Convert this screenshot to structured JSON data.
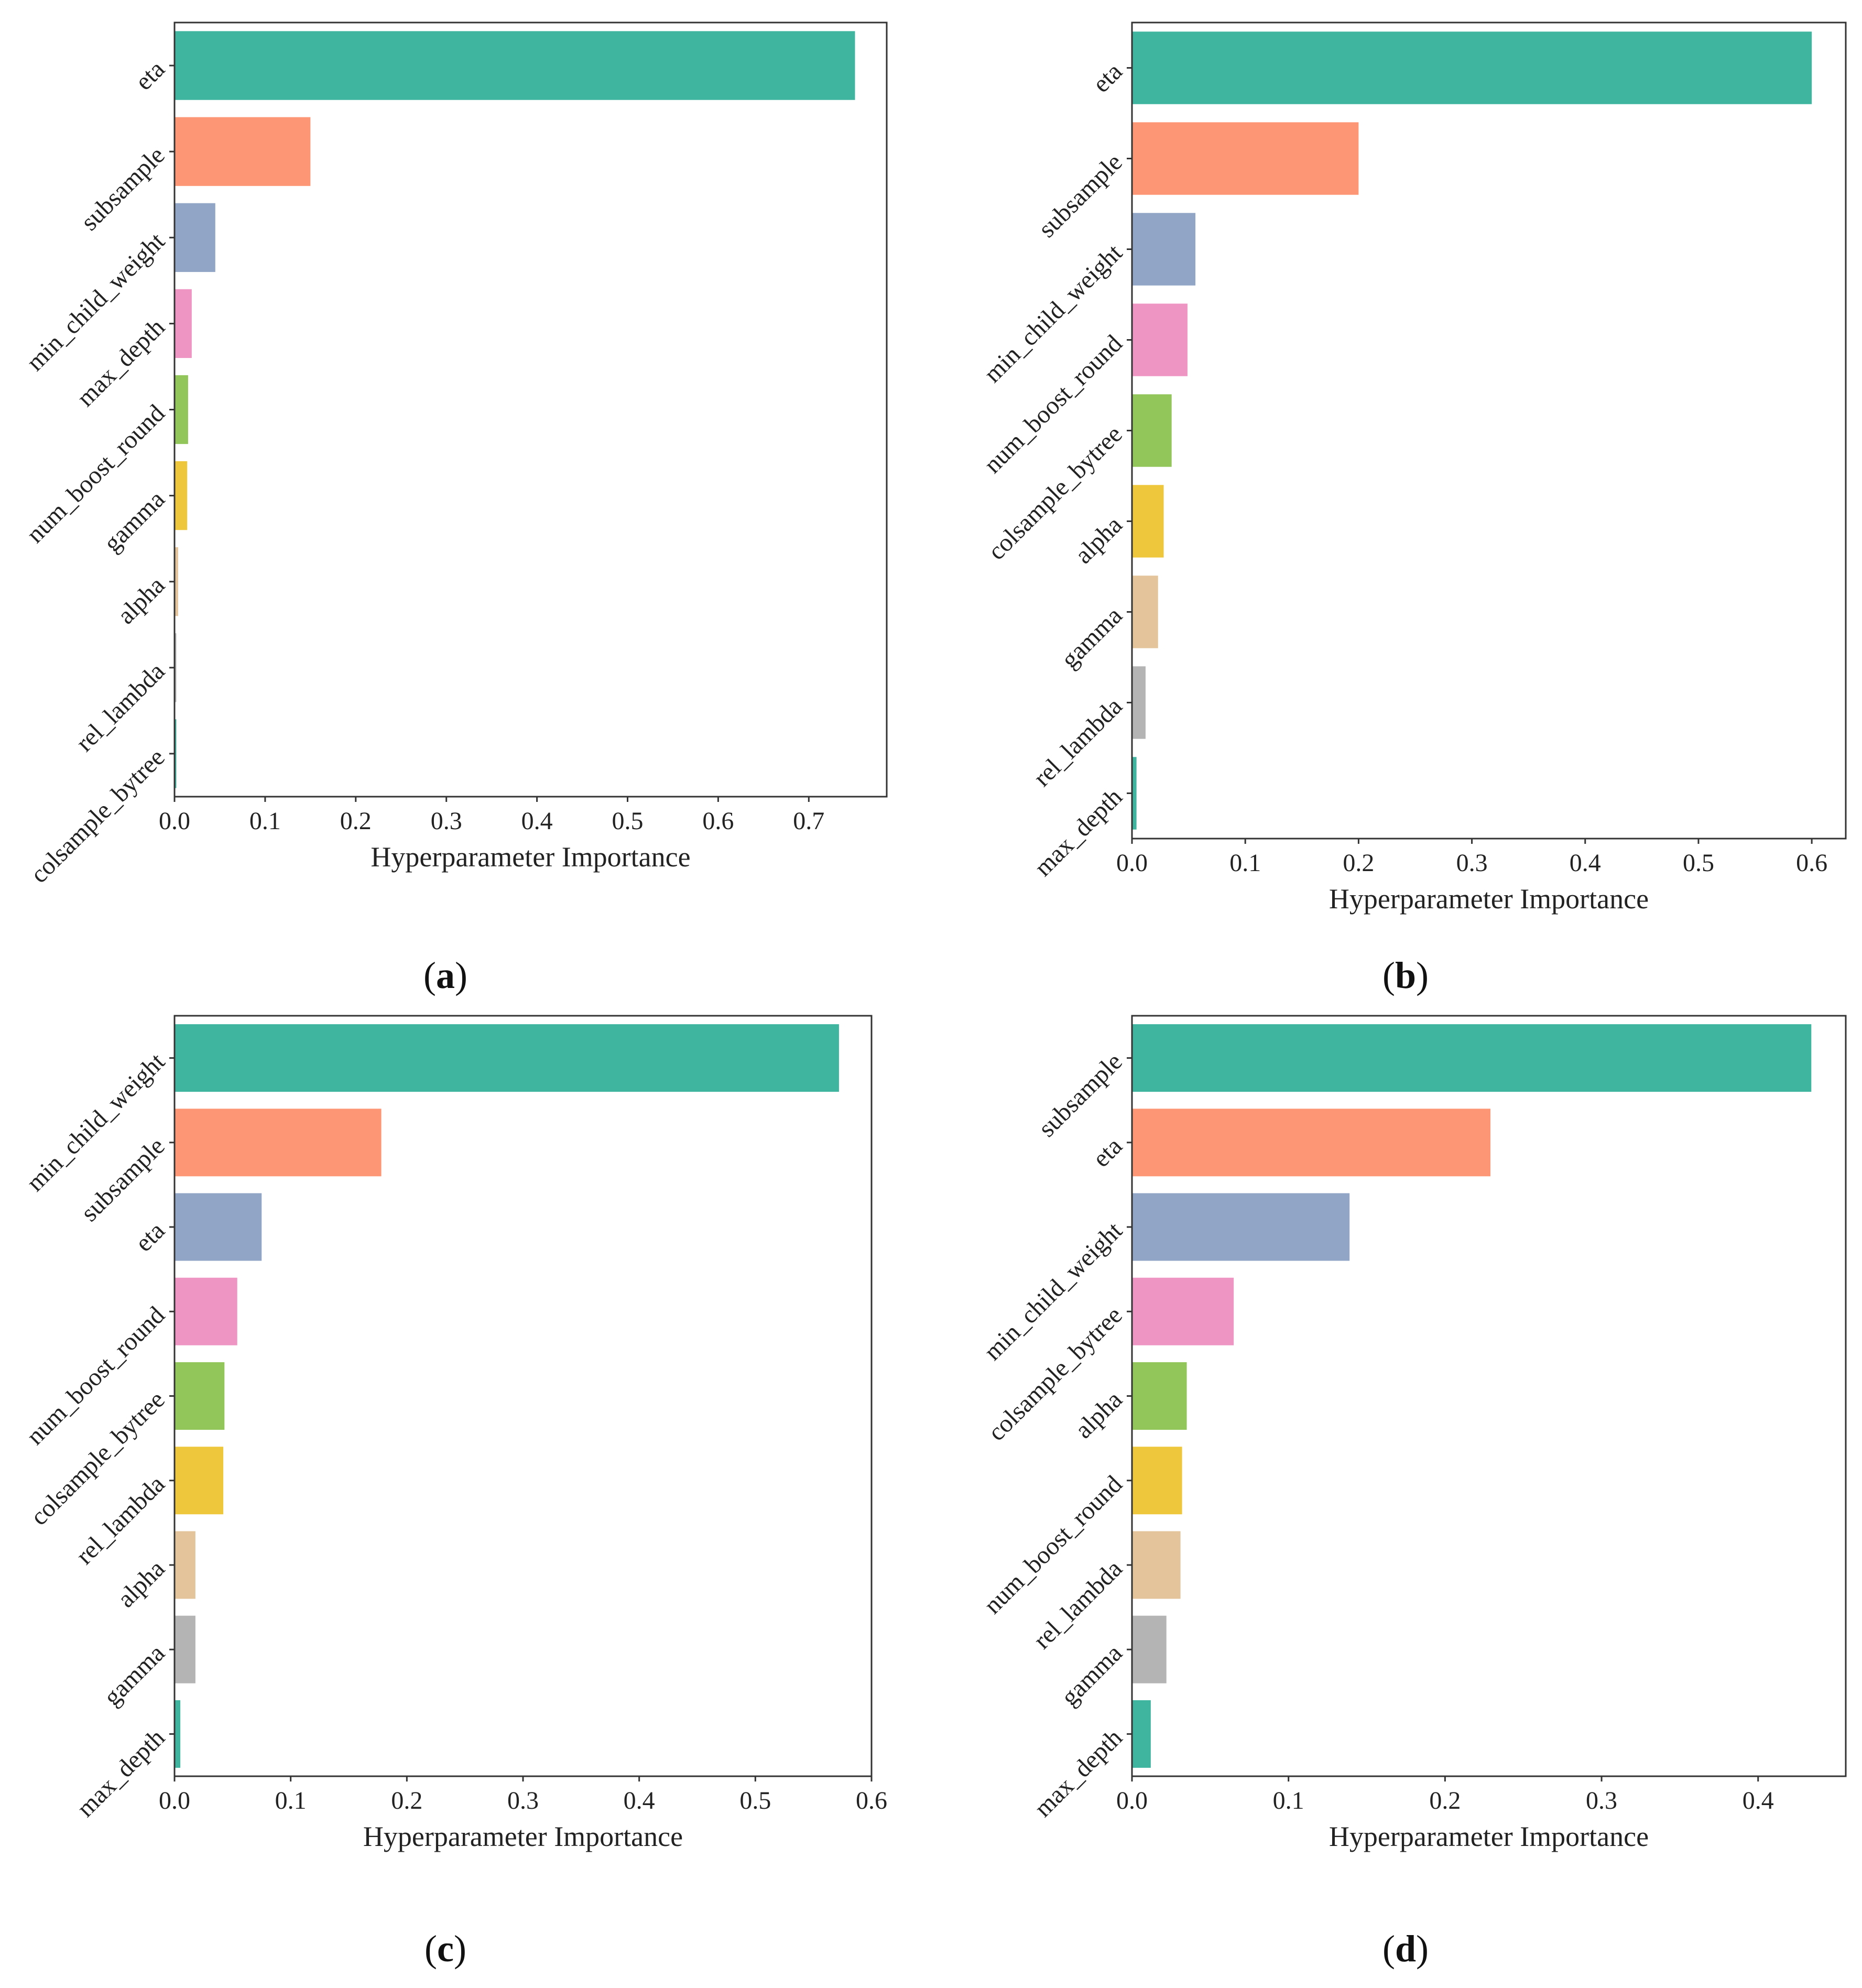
{
  "palette": [
    "#3fb5a0",
    "#fd9675",
    "#91a5c6",
    "#ee95c3",
    "#92c65a",
    "#efc73d",
    "#e3c49b",
    "#b4b4b4",
    "#3fb5a0"
  ],
  "chart_data": [
    {
      "panel": "a",
      "type": "bar",
      "orientation": "horizontal",
      "caption_open": "(",
      "caption_letter": "a",
      "caption_close": ")",
      "xlabel": "Hyperparameter Importance",
      "xlim": [
        0,
        0.786
      ],
      "xticks": [
        "0.0",
        "0.1",
        "0.2",
        "0.3",
        "0.4",
        "0.5",
        "0.6",
        "0.7"
      ],
      "categories": [
        "eta",
        "subsample",
        "min_child_weight",
        "max_depth",
        "num_boost_round",
        "gamma",
        "alpha",
        "rel_lambda",
        "colsample_bytree"
      ],
      "values": [
        0.751,
        0.15,
        0.045,
        0.019,
        0.015,
        0.014,
        0.004,
        0.002,
        0.002
      ]
    },
    {
      "panel": "b",
      "type": "bar",
      "orientation": "horizontal",
      "caption_open": "(",
      "caption_letter": "b",
      "caption_close": ")",
      "xlabel": "Hyperparameter Importance",
      "xlim": [
        0,
        0.63
      ],
      "xticks": [
        "0.0",
        "0.1",
        "0.2",
        "0.3",
        "0.4",
        "0.5",
        "0.6"
      ],
      "categories": [
        "eta",
        "subsample",
        "min_child_weight",
        "num_boost_round",
        "colsample_bytree",
        "alpha",
        "gamma",
        "rel_lambda",
        "max_depth"
      ],
      "values": [
        0.6,
        0.2,
        0.056,
        0.049,
        0.035,
        0.028,
        0.023,
        0.012,
        0.004
      ]
    },
    {
      "panel": "c",
      "type": "bar",
      "orientation": "horizontal",
      "caption_open": "(",
      "caption_letter": "c",
      "caption_close": ")",
      "xlabel": "Hyperparameter Importance",
      "xlim": [
        0,
        0.6
      ],
      "xticks": [
        "0.0",
        "0.1",
        "0.2",
        "0.3",
        "0.4",
        "0.5",
        "0.6"
      ],
      "categories": [
        "min_child_weight",
        "subsample",
        "eta",
        "num_boost_round",
        "colsample_bytree",
        "rel_lambda",
        "alpha",
        "gamma",
        "max_depth"
      ],
      "values": [
        0.572,
        0.178,
        0.075,
        0.054,
        0.043,
        0.042,
        0.018,
        0.018,
        0.005
      ]
    },
    {
      "panel": "d",
      "type": "bar",
      "orientation": "horizontal",
      "caption_open": "(",
      "caption_letter": "d",
      "caption_close": ")",
      "xlabel": "Hyperparameter Importance",
      "xlim": [
        0,
        0.456
      ],
      "xticks": [
        "0.0",
        "0.1",
        "0.2",
        "0.3",
        "0.4"
      ],
      "categories": [
        "subsample",
        "eta",
        "min_child_weight",
        "colsample_bytree",
        "alpha",
        "num_boost_round",
        "rel_lambda",
        "gamma",
        "max_depth"
      ],
      "values": [
        0.434,
        0.229,
        0.139,
        0.065,
        0.035,
        0.032,
        0.031,
        0.022,
        0.012
      ]
    }
  ]
}
